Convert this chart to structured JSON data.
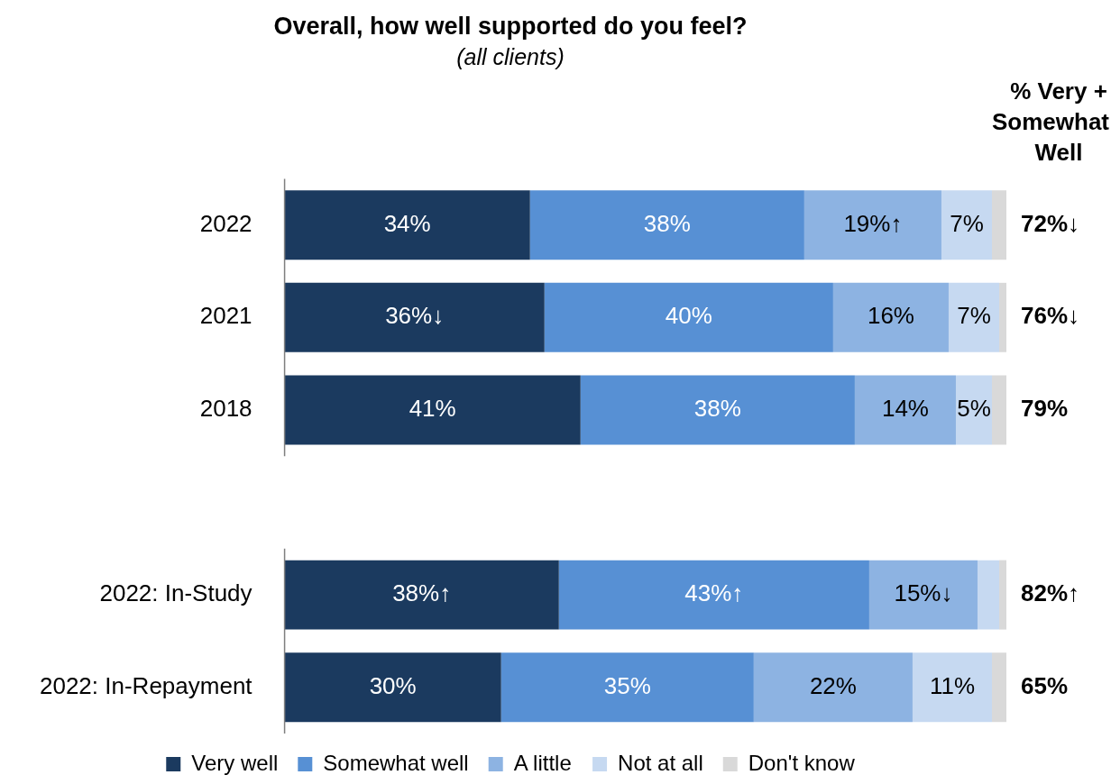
{
  "chart_data": {
    "type": "bar",
    "orientation": "horizontal",
    "stacked": true,
    "title": "Overall, how well supported do you feel?",
    "subtitle": "(all clients)",
    "categories": [
      "2022",
      "2021",
      "2018",
      null,
      "2022: In-Study",
      "2022: In-Repayment"
    ],
    "series": [
      {
        "name": "Very well",
        "color": "#1b3a5f",
        "values": [
          34,
          36,
          41,
          null,
          38,
          30
        ],
        "value_labels": [
          "34%",
          "36%↓",
          "41%",
          null,
          "38%↑",
          "30%"
        ]
      },
      {
        "name": "Somewhat well",
        "color": "#5790d4",
        "values": [
          38,
          40,
          38,
          null,
          43,
          35
        ],
        "value_labels": [
          "38%",
          "40%",
          "38%",
          null,
          "43%↑",
          "35%"
        ]
      },
      {
        "name": "A little",
        "color": "#8db3e2",
        "values": [
          19,
          16,
          14,
          null,
          15,
          22
        ],
        "value_labels": [
          "19%↑",
          "16%",
          "14%",
          null,
          "15%↓",
          "22%"
        ]
      },
      {
        "name": "Not at all",
        "color": "#c6d9f1",
        "values": [
          7,
          7,
          5,
          null,
          3,
          11
        ],
        "value_labels": [
          "7%",
          "7%",
          "5%",
          null,
          null,
          "11%"
        ]
      },
      {
        "name": "Don't know",
        "color": "#d9d9d9",
        "values": [
          2,
          1,
          2,
          null,
          1,
          2
        ],
        "value_labels": [
          null,
          null,
          null,
          null,
          null,
          null
        ]
      }
    ],
    "annotations": [
      "% Very + Somewhat Well",
      "72%↓",
      "76%↓",
      "79%",
      "82%↑",
      "65%"
    ],
    "xlim": [
      0,
      100
    ],
    "tick_labels": "y",
    "legend": "bottom"
  }
}
